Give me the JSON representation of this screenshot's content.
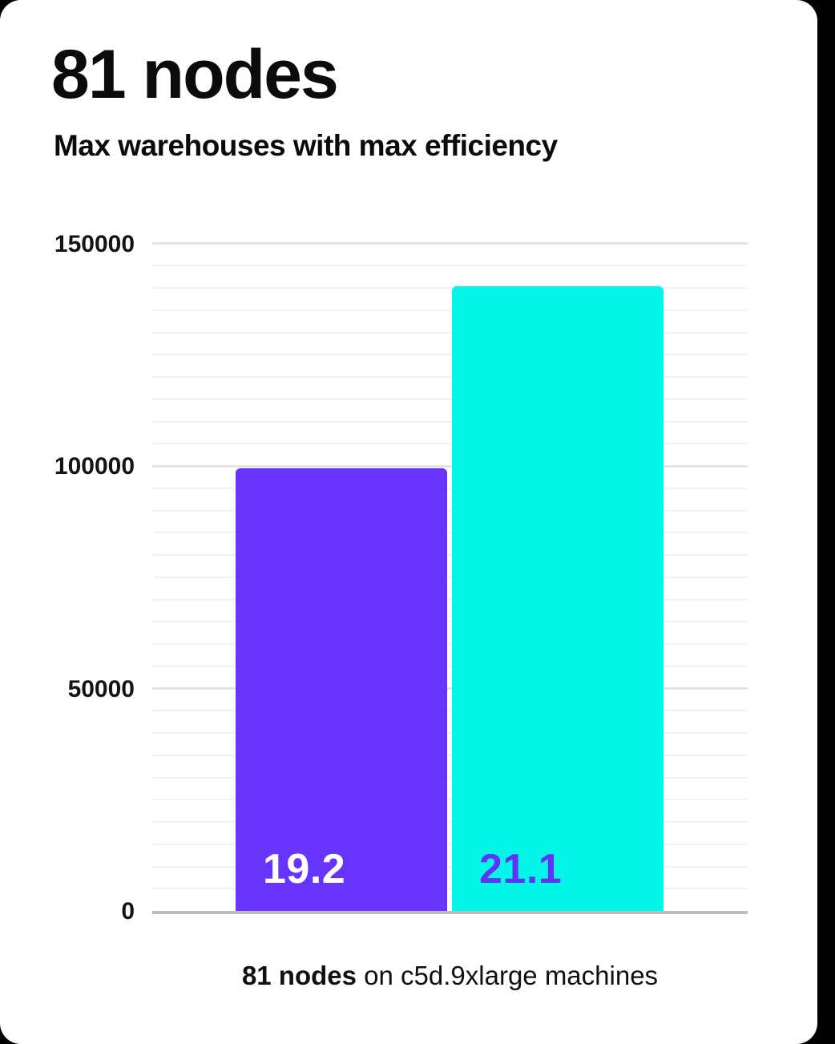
{
  "card": {
    "title": "81 nodes",
    "subtitle": "Max warehouses with max efficiency",
    "caption_bold": "81 nodes",
    "caption_rest": " on c5d.9xlarge machines"
  },
  "colors": {
    "page_background": "#000000",
    "card_background": "#ffffff",
    "title_text": "#0b0b0b",
    "axis_tick_text": "#141414",
    "grid_minor": "#f2f2f2",
    "grid_major": "#e4e4e4",
    "axis_baseline": "#bcbcbc",
    "bar_purple": "#6634fb",
    "bar_cyan": "#04f6e9",
    "label_on_purple": "#ffffff",
    "label_on_cyan": "#6333f5"
  },
  "chart_data": {
    "type": "bar",
    "title": "81 nodes",
    "subtitle": "Max warehouses with max efficiency",
    "caption": "81 nodes on c5d.9xlarge machines",
    "categories": [
      "bar-1",
      "bar-2"
    ],
    "series": [
      {
        "name": "bar-1",
        "value": 99500,
        "bar_label": "19.2",
        "color": "#6634fb",
        "label_color": "#ffffff"
      },
      {
        "name": "bar-2",
        "value": 140300,
        "bar_label": "21.1",
        "color": "#04f6e9",
        "label_color": "#6333f5"
      }
    ],
    "xlabel": "",
    "ylabel": "",
    "ylim": [
      0,
      150000
    ],
    "yticks": [
      0,
      50000,
      100000,
      150000
    ],
    "grid_minor_step": 5000,
    "grid": "horizontal",
    "legend": "none"
  }
}
